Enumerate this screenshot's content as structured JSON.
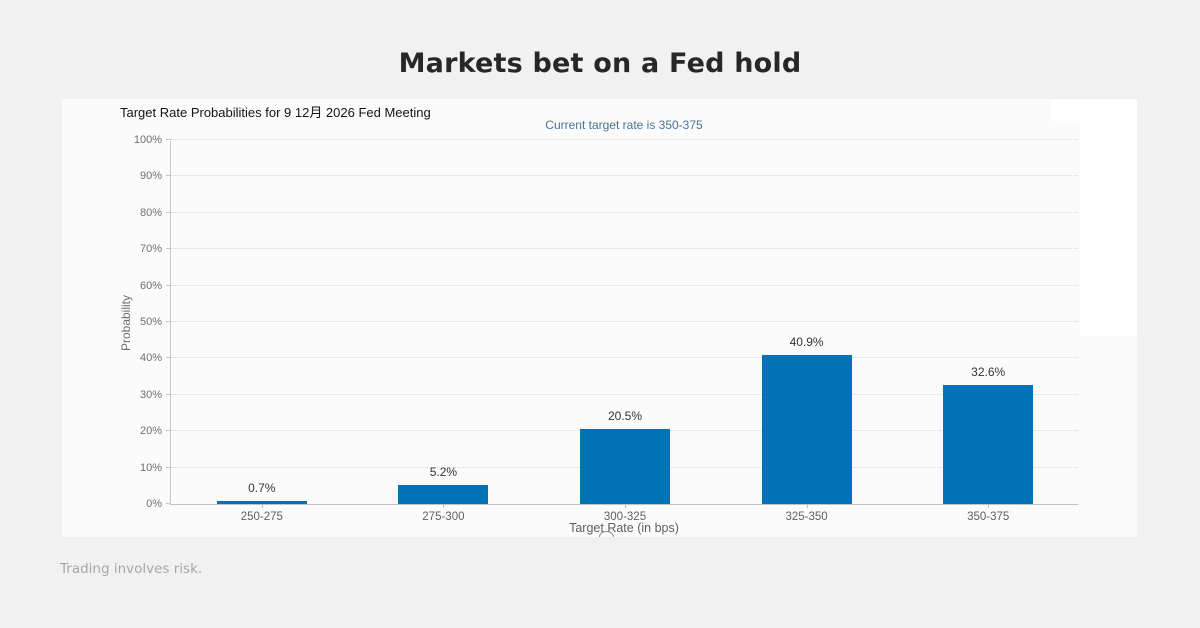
{
  "header": {
    "title": "Markets bet on a Fed hold"
  },
  "footer": {
    "disclaimer": "Trading involves risk."
  },
  "chart_data": {
    "type": "bar",
    "title": "Target Rate Probabilities for 9 12月 2026 Fed Meeting",
    "subtitle": "Current target rate is 350-375",
    "categories": [
      "250-275",
      "275-300",
      "300-325",
      "325-350",
      "350-375"
    ],
    "values": [
      0.7,
      5.2,
      20.5,
      40.9,
      32.6
    ],
    "value_labels": [
      "0.7%",
      "5.2%",
      "20.5%",
      "40.9%",
      "32.6%"
    ],
    "xlabel": "Target Rate (in bps)",
    "ylabel": "Probability",
    "ylim": [
      0,
      100
    ],
    "ytick_step": 10,
    "ytick_suffix": "%",
    "grid": "dotted-horizontal",
    "legend": "none",
    "bar_color": "#0072b5"
  },
  "colors": {
    "page_bg": "#f1f1f2",
    "card_bg": "#fbfbfb",
    "bar": "#0072b5",
    "subtitle_text": "#4a7295",
    "axis_line": "#c6c6c6",
    "gridline": "#d7d7d7",
    "tick_label": "#6f6f6f",
    "title_text": "#27272a",
    "footer_text": "#a7a7a7"
  }
}
